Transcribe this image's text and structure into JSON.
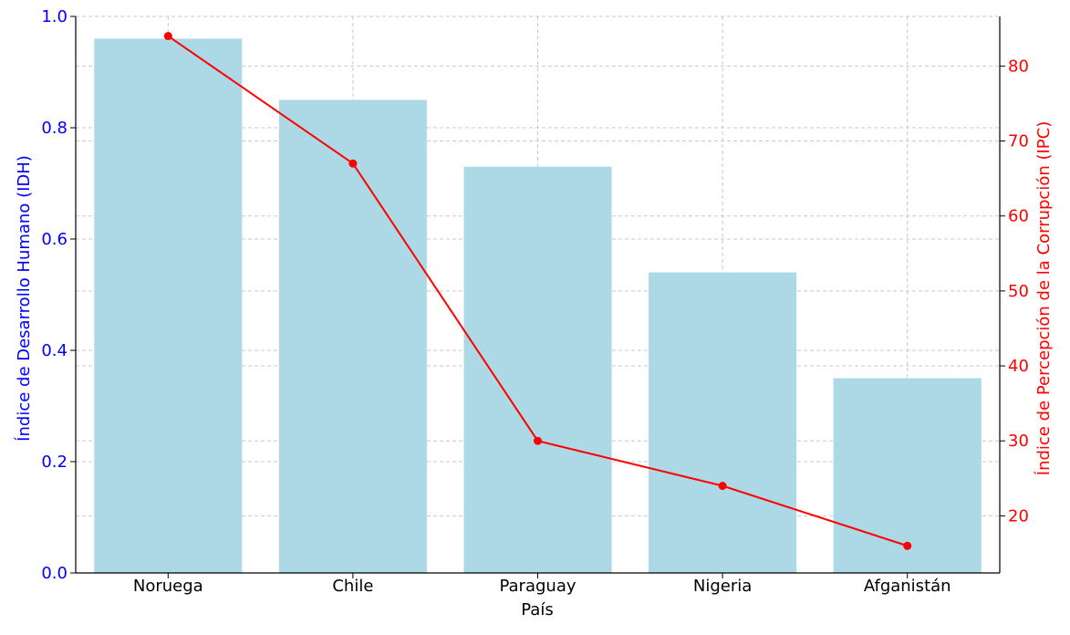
{
  "chart_data": {
    "type": "bar",
    "categories": [
      "Noruega",
      "Chile",
      "Paraguay",
      "Nigeria",
      "Afganistán"
    ],
    "series": [
      {
        "type": "bar",
        "axis": "left",
        "color": "#add8e6",
        "values": [
          0.96,
          0.85,
          0.73,
          0.54,
          0.35
        ]
      },
      {
        "type": "line",
        "axis": "right",
        "color": "#ff0000",
        "marker": "circle",
        "values": [
          84,
          67,
          30,
          24,
          16
        ]
      }
    ],
    "xlabel": "País",
    "ylabel_left": "Índice de Desarrollo Humano (IDH)",
    "ylabel_right": "Índice de Percepción de la Corrupción (IPC)",
    "ylim_left": [
      0,
      1.0
    ],
    "ylim_right": [
      12.38,
      86.62
    ],
    "yticks_left": [
      "0.0",
      "0.2",
      "0.4",
      "0.6",
      "0.8",
      "1.0"
    ],
    "yticks_right": [
      "20",
      "30",
      "40",
      "50",
      "60",
      "70",
      "80"
    ],
    "left_axis_color": "#0000ff",
    "right_axis_color": "#ff0000",
    "grid": true
  }
}
